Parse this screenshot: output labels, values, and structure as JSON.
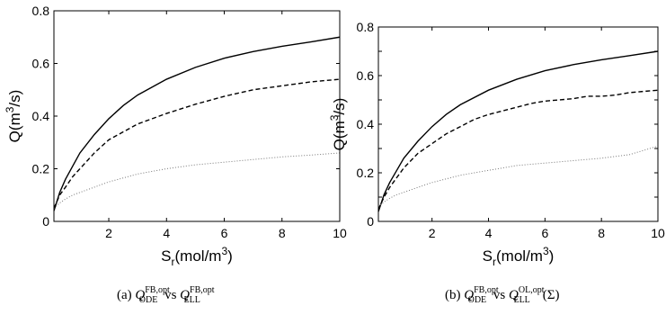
{
  "chart_data": [
    {
      "type": "line",
      "xlim": [
        0.1,
        10
      ],
      "ylim": [
        0,
        0.8
      ],
      "xticks": [
        2,
        4,
        6,
        8,
        10
      ],
      "yticks": [
        0,
        0.2,
        0.4,
        0.6,
        0.8
      ],
      "ytick_labels": [
        "0",
        "0.2",
        "0.4",
        "0.6",
        "0.8"
      ],
      "xticks_labels": [
        "2",
        "4",
        "6",
        "8",
        "10"
      ],
      "grid": false,
      "xlabel": {
        "main": "S",
        "sub": "r",
        "rest": "(mol/m",
        "sup": "3",
        "end": ")"
      },
      "ylabel": {
        "main": "Q(m",
        "sup": "3",
        "end": "/s)"
      },
      "caption": {
        "tag": "(a) ",
        "lhs": "Q",
        "lhs_sup": "FB,opt",
        "lhs_sub": "ODE",
        "vs": " vs ",
        "rhs": "Q",
        "rhs_sup": "FB,opt",
        "rhs_sub": "ELL",
        "suffix": ""
      },
      "series": [
        {
          "style": "solid",
          "color": "#000000",
          "x": [
            0.1,
            0.3,
            0.5,
            0.75,
            1,
            1.5,
            2,
            2.5,
            3,
            4,
            5,
            6,
            7,
            8,
            9,
            10
          ],
          "y": [
            0.04,
            0.11,
            0.16,
            0.21,
            0.26,
            0.33,
            0.39,
            0.44,
            0.48,
            0.54,
            0.585,
            0.62,
            0.645,
            0.665,
            0.682,
            0.7
          ]
        },
        {
          "style": "dashed",
          "color": "#000000",
          "x": [
            0.1,
            0.3,
            0.5,
            0.75,
            1,
            1.5,
            2,
            2.5,
            3,
            4,
            5,
            6,
            7,
            8,
            9,
            10
          ],
          "y": [
            0.05,
            0.1,
            0.13,
            0.17,
            0.2,
            0.26,
            0.31,
            0.34,
            0.37,
            0.41,
            0.445,
            0.475,
            0.5,
            0.515,
            0.53,
            0.54
          ]
        },
        {
          "style": "dotted",
          "color": "#777777",
          "x": [
            0.1,
            0.3,
            0.5,
            0.75,
            1,
            1.5,
            2,
            3,
            4,
            5,
            6,
            7,
            8,
            9,
            10
          ],
          "y": [
            0.05,
            0.07,
            0.085,
            0.1,
            0.11,
            0.13,
            0.15,
            0.18,
            0.2,
            0.215,
            0.225,
            0.235,
            0.245,
            0.252,
            0.26
          ]
        }
      ]
    },
    {
      "type": "line",
      "xlim": [
        0.1,
        10
      ],
      "ylim": [
        0,
        0.8
      ],
      "xticks": [
        2,
        4,
        6,
        8,
        10
      ],
      "yticks": [
        0,
        0.1,
        0.2,
        0.3,
        0.4,
        0.5,
        0.6,
        0.7,
        0.8
      ],
      "ytick_labels": [
        "0",
        "",
        "0.2",
        "",
        "0.4",
        "",
        "0.6",
        "",
        "0.8"
      ],
      "xticks_labels": [
        "2",
        "4",
        "6",
        "8",
        "10"
      ],
      "grid": false,
      "xlabel": {
        "main": "S",
        "sub": "r",
        "rest": "(mol/m",
        "sup": "3",
        "end": ")"
      },
      "ylabel": {
        "main": "Q(m",
        "sup": "3",
        "end": "/s)"
      },
      "caption": {
        "tag": "(b) ",
        "lhs": "Q",
        "lhs_sup": "FB,opt",
        "lhs_sub": "ODE",
        "vs": " vs ",
        "rhs": "Q",
        "rhs_sup": "OL,opt",
        "rhs_sub": "ELL",
        "suffix": "(Σ)"
      },
      "series": [
        {
          "style": "solid",
          "color": "#000000",
          "x": [
            0.1,
            0.3,
            0.5,
            0.75,
            1,
            1.5,
            2,
            2.5,
            3,
            4,
            5,
            6,
            7,
            8,
            9,
            10
          ],
          "y": [
            0.04,
            0.11,
            0.16,
            0.21,
            0.26,
            0.33,
            0.39,
            0.44,
            0.48,
            0.54,
            0.585,
            0.62,
            0.645,
            0.665,
            0.682,
            0.7
          ]
        },
        {
          "style": "dashed",
          "color": "#000000",
          "x": [
            0.1,
            0.3,
            0.5,
            0.75,
            1,
            1.5,
            2,
            2.5,
            3,
            3.5,
            4,
            4.5,
            5,
            5.5,
            6,
            6.5,
            7,
            7.5,
            8,
            8.5,
            9,
            9.5,
            10
          ],
          "y": [
            0.05,
            0.1,
            0.14,
            0.18,
            0.22,
            0.28,
            0.32,
            0.36,
            0.39,
            0.42,
            0.44,
            0.455,
            0.47,
            0.485,
            0.495,
            0.5,
            0.505,
            0.515,
            0.515,
            0.52,
            0.53,
            0.535,
            0.54
          ]
        },
        {
          "style": "dotted",
          "color": "#777777",
          "x": [
            0.1,
            0.3,
            0.5,
            0.75,
            1,
            1.5,
            2,
            3,
            4,
            5,
            6,
            7,
            8,
            9,
            10
          ],
          "y": [
            0.06,
            0.08,
            0.095,
            0.11,
            0.12,
            0.14,
            0.16,
            0.19,
            0.21,
            0.23,
            0.24,
            0.25,
            0.26,
            0.275,
            0.31
          ]
        }
      ]
    }
  ]
}
